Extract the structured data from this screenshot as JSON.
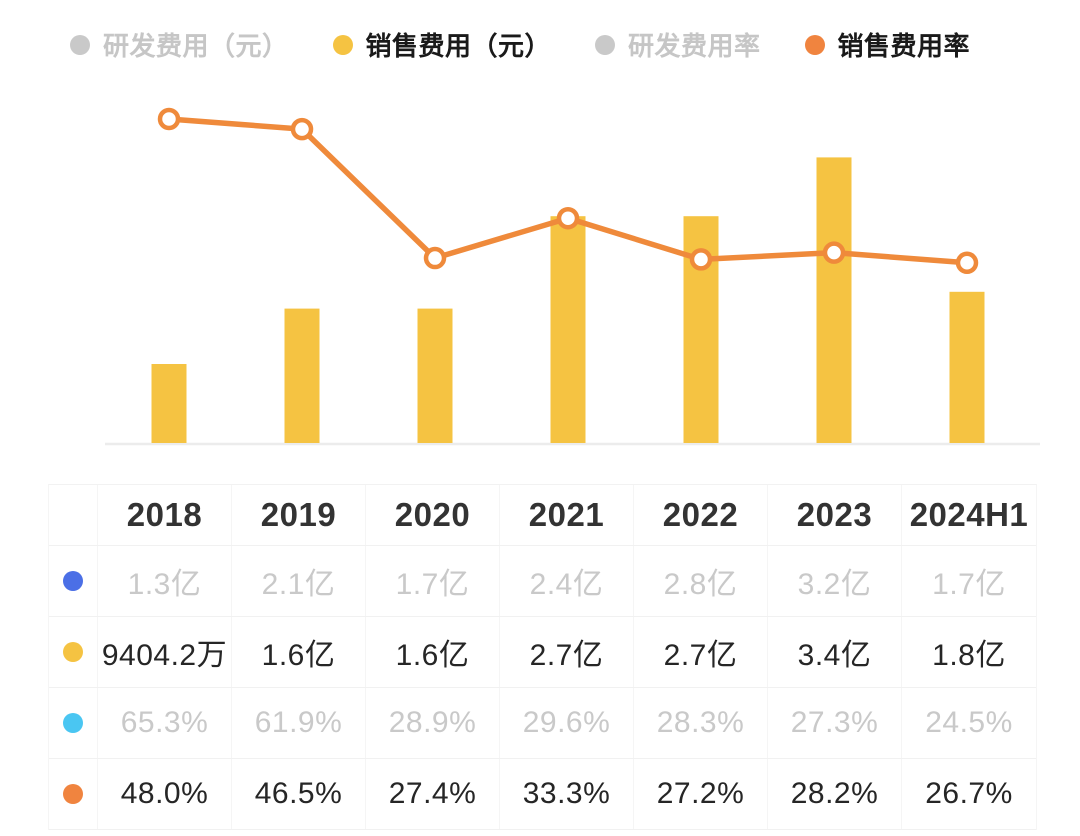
{
  "legend": {
    "items": [
      {
        "id": "rnd-expense",
        "label": "研发费用（元）",
        "dot_color": "#c9c9c9",
        "text_color": "#c6c6c6",
        "active": false
      },
      {
        "id": "sales-expense",
        "label": "销售费用（元）",
        "dot_color": "#f5c342",
        "text_color": "#1a1a1a",
        "active": true
      },
      {
        "id": "rnd-expense-ratio",
        "label": "研发费用率",
        "dot_color": "#c9c9c9",
        "text_color": "#c6c6c6",
        "active": false
      },
      {
        "id": "sales-expense-ratio",
        "label": "销售费用率",
        "dot_color": "#f0843f",
        "text_color": "#1a1a1a",
        "active": true
      }
    ]
  },
  "chart_data": {
    "type": "bar+line",
    "categories": [
      "2018",
      "2019",
      "2020",
      "2021",
      "2022",
      "2023",
      "2024H1"
    ],
    "series": [
      {
        "id": "rnd-expense",
        "name": "研发费用（元）",
        "type": "bar",
        "unit": "亿元",
        "visible": false,
        "color": "#4b6fe6",
        "values": [
          1.3,
          2.1,
          1.7,
          2.4,
          2.8,
          3.2,
          1.7
        ],
        "labels": [
          "1.3亿",
          "2.1亿",
          "1.7亿",
          "2.4亿",
          "2.8亿",
          "3.2亿",
          "1.7亿"
        ]
      },
      {
        "id": "sales-expense",
        "name": "销售费用（元）",
        "type": "bar",
        "unit": "亿元",
        "visible": true,
        "color": "#f5c342",
        "values": [
          0.94042,
          1.6,
          1.6,
          2.7,
          2.7,
          3.4,
          1.8
        ],
        "labels": [
          "9404.2万",
          "1.6亿",
          "1.6亿",
          "2.7亿",
          "2.7亿",
          "3.4亿",
          "1.8亿"
        ]
      },
      {
        "id": "rnd-expense-ratio",
        "name": "研发费用率",
        "type": "line",
        "unit": "%",
        "visible": false,
        "color": "#4ac6f2",
        "values": [
          65.3,
          61.9,
          28.9,
          29.6,
          28.3,
          27.3,
          24.5
        ],
        "labels": [
          "65.3%",
          "61.9%",
          "28.9%",
          "29.6%",
          "28.3%",
          "27.3%",
          "24.5%"
        ]
      },
      {
        "id": "sales-expense-ratio",
        "name": "销售费用率",
        "type": "line",
        "unit": "%",
        "visible": true,
        "color": "#ef8a3b",
        "values": [
          48.0,
          46.5,
          27.4,
          33.3,
          27.2,
          28.2,
          26.7
        ],
        "labels": [
          "48.0%",
          "46.5%",
          "27.4%",
          "33.3%",
          "27.2%",
          "28.2%",
          "26.7%"
        ]
      }
    ],
    "title": "",
    "xlabel": "",
    "ylabel": "",
    "legend_position": "top",
    "grid": false,
    "axes_visible": false,
    "bar_axis_range_yi": [
      0,
      4.3
    ],
    "pct_axis_range": [
      0,
      55
    ]
  },
  "table": {
    "header": [
      "2018",
      "2019",
      "2020",
      "2021",
      "2022",
      "2023",
      "2024H1"
    ],
    "rows": [
      {
        "id": "rnd-expense",
        "series": "研发费用（元）",
        "dot_color": "#4b6fe6",
        "muted": true,
        "values": [
          "1.3亿",
          "2.1亿",
          "1.7亿",
          "2.4亿",
          "2.8亿",
          "3.2亿",
          "1.7亿"
        ]
      },
      {
        "id": "sales-expense",
        "series": "销售费用（元）",
        "dot_color": "#f5c342",
        "muted": false,
        "values": [
          "9404.2万",
          "1.6亿",
          "1.6亿",
          "2.7亿",
          "2.7亿",
          "3.4亿",
          "1.8亿"
        ]
      },
      {
        "id": "rnd-expense-ratio",
        "series": "研发费用率",
        "dot_color": "#4ac6f2",
        "muted": true,
        "values": [
          "65.3%",
          "61.9%",
          "28.9%",
          "29.6%",
          "28.3%",
          "27.3%",
          "24.5%"
        ]
      },
      {
        "id": "sales-expense-ratio",
        "series": "销售费用率",
        "dot_color": "#f0843f",
        "muted": false,
        "values": [
          "48.0%",
          "46.5%",
          "27.4%",
          "33.3%",
          "27.2%",
          "28.2%",
          "26.7%"
        ]
      }
    ]
  },
  "colors": {
    "bar_yellow": "#f5c342",
    "line_orange": "#ef8a3b",
    "dot_blue": "#4b6fe6",
    "dot_cyan": "#4ac6f2",
    "muted_gray": "#c9c9c9",
    "text_dark": "#262626",
    "header_text": "#333333",
    "table_border": "#f1f1f1",
    "axis_line": "#ececec"
  }
}
